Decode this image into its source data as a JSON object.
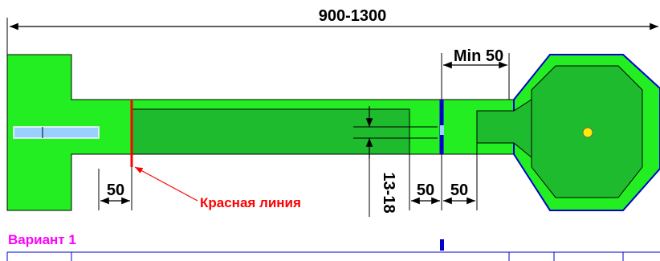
{
  "dimensions": {
    "overall_length": "900-1300",
    "min_gap": "Min 50",
    "offset_left": "50",
    "depth": "13-18",
    "offset_right_a": "50",
    "offset_right_b": "50"
  },
  "labels": {
    "red_line": "Красная линия",
    "variant": "Вариант 1"
  },
  "colors": {
    "body_green": "#22ee22",
    "dark_green": "#1fbb2f",
    "outline": "#0000cc",
    "red_line": "#ff0000",
    "variant_text": "#ff00ff",
    "center_dot": "#ffee00",
    "slot": "#9ad0ff"
  }
}
